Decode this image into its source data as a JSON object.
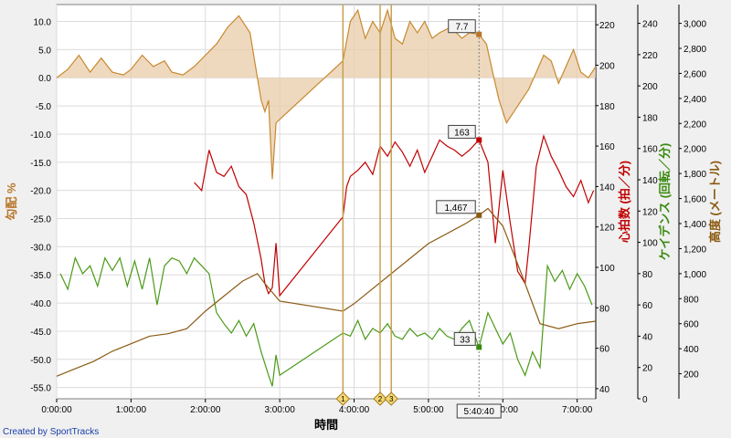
{
  "credit": "Created by SportTracks",
  "chart_data": {
    "type": "line",
    "xlabel": "時間",
    "x_ticks": [
      "0:00:00",
      "1:00:00",
      "2:00:00",
      "3:00:00",
      "4:00:00",
      "5:00:00",
      "6:00:00",
      "7:00:00"
    ],
    "x_range_hours": [
      0,
      7.25
    ],
    "axes": {
      "gradient": {
        "label": "勾配 %",
        "color": "#b8762a",
        "ticks": [
          "10.0",
          "5.0",
          "0.0",
          "-5.0",
          "-10.0",
          "-15.0",
          "-20.0",
          "-25.0",
          "-30.0",
          "-35.0",
          "-40.0",
          "-45.0",
          "-50.0",
          "-55.0"
        ],
        "range": [
          -57,
          13
        ]
      },
      "heart_rate": {
        "label": "心拍数 (拍／分)",
        "color": "#c00000",
        "ticks": [
          "220",
          "200",
          "180",
          "160",
          "140",
          "120",
          "100",
          "80",
          "60",
          "40"
        ],
        "range": [
          35,
          230
        ]
      },
      "cadence": {
        "label": "ケイデンス (回転／分)",
        "color": "#3a8a10",
        "ticks": [
          "240",
          "220",
          "200",
          "180",
          "160",
          "140",
          "120",
          "100",
          "80",
          "60",
          "40",
          "20",
          "0"
        ],
        "range": [
          0,
          252
        ]
      },
      "elevation": {
        "label": "高度 (メートル)",
        "color": "#8a5a10",
        "ticks": [
          "3,000",
          "2,800",
          "2,600",
          "2,400",
          "2,200",
          "2,000",
          "1,800",
          "1,600",
          "1,400",
          "1,200",
          "1,000",
          "800",
          "600",
          "400",
          "200"
        ],
        "range": [
          0,
          3150
        ]
      }
    },
    "markers": [
      {
        "label": "1",
        "x": 3.85
      },
      {
        "label": "2",
        "x": 4.35
      },
      {
        "label": "3",
        "x": 4.5
      }
    ],
    "cursor": {
      "x": 5.68,
      "time_label": "5:40:40",
      "gradient": "7.7",
      "heart_rate": "163",
      "elevation": "1,467",
      "cadence": "33"
    },
    "series": [
      {
        "name": "勾配",
        "axis": "gradient",
        "color": "#c8882e",
        "points": [
          [
            0,
            0
          ],
          [
            0.15,
            1.5
          ],
          [
            0.3,
            4
          ],
          [
            0.45,
            1
          ],
          [
            0.6,
            3.5
          ],
          [
            0.75,
            1
          ],
          [
            0.9,
            0.5
          ],
          [
            1.0,
            1.5
          ],
          [
            1.15,
            4
          ],
          [
            1.3,
            2
          ],
          [
            1.45,
            3
          ],
          [
            1.55,
            1
          ],
          [
            1.7,
            0.5
          ],
          [
            1.85,
            2
          ],
          [
            2.0,
            4
          ],
          [
            2.15,
            6
          ],
          [
            2.3,
            9
          ],
          [
            2.45,
            11
          ],
          [
            2.6,
            8
          ],
          [
            2.7,
            0
          ],
          [
            2.75,
            -4
          ],
          [
            2.8,
            -6
          ],
          [
            2.85,
            -4
          ],
          [
            2.9,
            -18
          ],
          [
            2.95,
            -8
          ],
          [
            3.85,
            3
          ],
          [
            3.95,
            10
          ],
          [
            4.05,
            12
          ],
          [
            4.15,
            7
          ],
          [
            4.25,
            10
          ],
          [
            4.35,
            8
          ],
          [
            4.45,
            12
          ],
          [
            4.55,
            7
          ],
          [
            4.65,
            6
          ],
          [
            4.75,
            10
          ],
          [
            4.85,
            8
          ],
          [
            4.95,
            10
          ],
          [
            5.05,
            7
          ],
          [
            5.15,
            8
          ],
          [
            5.3,
            9
          ],
          [
            5.45,
            7
          ],
          [
            5.55,
            8
          ],
          [
            5.68,
            7.7
          ],
          [
            5.78,
            6
          ],
          [
            5.88,
            0
          ],
          [
            5.95,
            -4
          ],
          [
            6.05,
            -8
          ],
          [
            6.15,
            -6
          ],
          [
            6.25,
            -4
          ],
          [
            6.35,
            -2
          ],
          [
            6.45,
            1
          ],
          [
            6.55,
            4
          ],
          [
            6.65,
            3
          ],
          [
            6.75,
            -1
          ],
          [
            6.85,
            2
          ],
          [
            6.95,
            5
          ],
          [
            7.05,
            1
          ],
          [
            7.15,
            0
          ],
          [
            7.25,
            2
          ]
        ]
      },
      {
        "name": "心拍数",
        "axis": "heart_rate",
        "color": "#c00000",
        "points": [
          [
            1.85,
            142
          ],
          [
            1.95,
            138
          ],
          [
            2.05,
            158
          ],
          [
            2.15,
            147
          ],
          [
            2.25,
            145
          ],
          [
            2.35,
            150
          ],
          [
            2.45,
            140
          ],
          [
            2.55,
            136
          ],
          [
            2.65,
            122
          ],
          [
            2.75,
            104
          ],
          [
            2.8,
            92
          ],
          [
            2.85,
            87
          ],
          [
            2.9,
            90
          ],
          [
            2.95,
            112
          ],
          [
            3.0,
            86
          ],
          [
            3.85,
            125
          ],
          [
            3.9,
            140
          ],
          [
            3.95,
            145
          ],
          [
            4.05,
            148
          ],
          [
            4.15,
            152
          ],
          [
            4.25,
            146
          ],
          [
            4.35,
            160
          ],
          [
            4.45,
            155
          ],
          [
            4.55,
            162
          ],
          [
            4.65,
            157
          ],
          [
            4.75,
            150
          ],
          [
            4.85,
            158
          ],
          [
            4.95,
            147
          ],
          [
            5.05,
            155
          ],
          [
            5.15,
            163
          ],
          [
            5.25,
            160
          ],
          [
            5.35,
            158
          ],
          [
            5.45,
            155
          ],
          [
            5.55,
            158
          ],
          [
            5.68,
            163
          ],
          [
            5.8,
            152
          ],
          [
            5.9,
            112
          ],
          [
            6.0,
            148
          ],
          [
            6.1,
            122
          ],
          [
            6.2,
            98
          ],
          [
            6.3,
            92
          ],
          [
            6.35,
            110
          ],
          [
            6.45,
            150
          ],
          [
            6.55,
            165
          ],
          [
            6.65,
            155
          ],
          [
            6.75,
            148
          ],
          [
            6.85,
            140
          ],
          [
            6.95,
            135
          ],
          [
            7.05,
            143
          ],
          [
            7.15,
            132
          ],
          [
            7.22,
            138
          ]
        ]
      },
      {
        "name": "ケイデンス",
        "axis": "cadence",
        "color": "#4a9a18",
        "points": [
          [
            0.05,
            80
          ],
          [
            0.15,
            70
          ],
          [
            0.25,
            90
          ],
          [
            0.35,
            80
          ],
          [
            0.45,
            85
          ],
          [
            0.55,
            72
          ],
          [
            0.65,
            90
          ],
          [
            0.75,
            82
          ],
          [
            0.85,
            90
          ],
          [
            0.95,
            72
          ],
          [
            1.05,
            88
          ],
          [
            1.15,
            70
          ],
          [
            1.25,
            90
          ],
          [
            1.35,
            60
          ],
          [
            1.45,
            85
          ],
          [
            1.55,
            90
          ],
          [
            1.65,
            88
          ],
          [
            1.75,
            80
          ],
          [
            1.85,
            90
          ],
          [
            1.95,
            85
          ],
          [
            2.05,
            80
          ],
          [
            2.15,
            55
          ],
          [
            2.25,
            48
          ],
          [
            2.35,
            42
          ],
          [
            2.45,
            50
          ],
          [
            2.55,
            40
          ],
          [
            2.65,
            48
          ],
          [
            2.75,
            30
          ],
          [
            2.85,
            15
          ],
          [
            2.9,
            8
          ],
          [
            2.95,
            28
          ],
          [
            3.0,
            15
          ],
          [
            3.85,
            42
          ],
          [
            3.95,
            40
          ],
          [
            4.05,
            50
          ],
          [
            4.15,
            38
          ],
          [
            4.25,
            45
          ],
          [
            4.35,
            42
          ],
          [
            4.45,
            48
          ],
          [
            4.55,
            40
          ],
          [
            4.65,
            38
          ],
          [
            4.75,
            45
          ],
          [
            4.85,
            40
          ],
          [
            4.95,
            42
          ],
          [
            5.05,
            38
          ],
          [
            5.15,
            45
          ],
          [
            5.25,
            40
          ],
          [
            5.35,
            38
          ],
          [
            5.45,
            45
          ],
          [
            5.55,
            50
          ],
          [
            5.68,
            33
          ],
          [
            5.8,
            55
          ],
          [
            5.9,
            45
          ],
          [
            6.0,
            35
          ],
          [
            6.1,
            42
          ],
          [
            6.2,
            25
          ],
          [
            6.3,
            15
          ],
          [
            6.4,
            30
          ],
          [
            6.5,
            20
          ],
          [
            6.6,
            85
          ],
          [
            6.7,
            75
          ],
          [
            6.8,
            82
          ],
          [
            6.9,
            70
          ],
          [
            7.0,
            80
          ],
          [
            7.1,
            72
          ],
          [
            7.2,
            60
          ]
        ]
      },
      {
        "name": "高度",
        "axis": "elevation",
        "color": "#8b5a14",
        "points": [
          [
            0,
            180
          ],
          [
            0.25,
            240
          ],
          [
            0.5,
            300
          ],
          [
            0.75,
            380
          ],
          [
            1.0,
            440
          ],
          [
            1.25,
            500
          ],
          [
            1.5,
            520
          ],
          [
            1.75,
            560
          ],
          [
            2.0,
            700
          ],
          [
            2.25,
            820
          ],
          [
            2.5,
            940
          ],
          [
            2.7,
            1000
          ],
          [
            2.8,
            920
          ],
          [
            2.9,
            850
          ],
          [
            3.0,
            780
          ],
          [
            3.85,
            700
          ],
          [
            4.0,
            760
          ],
          [
            4.5,
            1000
          ],
          [
            5.0,
            1240
          ],
          [
            5.5,
            1400
          ],
          [
            5.68,
            1467
          ],
          [
            5.8,
            1520
          ],
          [
            6.0,
            1380
          ],
          [
            6.25,
            1000
          ],
          [
            6.5,
            600
          ],
          [
            6.75,
            560
          ],
          [
            7.0,
            600
          ],
          [
            7.25,
            620
          ]
        ]
      }
    ]
  }
}
